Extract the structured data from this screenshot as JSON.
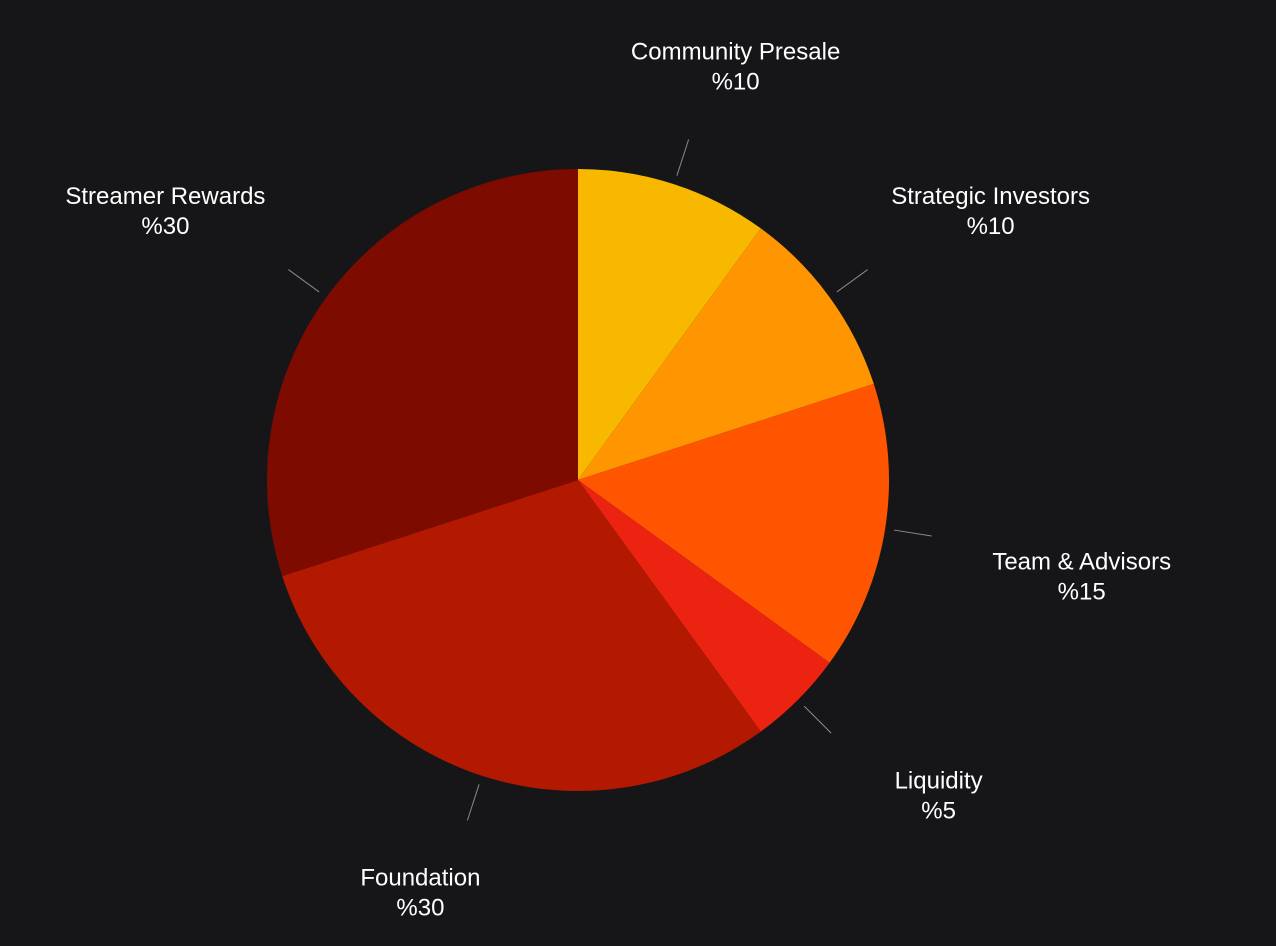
{
  "chart_data": {
    "type": "pie",
    "background": "#161618",
    "start_angle_deg": 0,
    "direction": "clockwise",
    "slices": [
      {
        "label": "Community Presale",
        "value": 10,
        "value_label": "%10",
        "color": "#F8B800"
      },
      {
        "label": "Strategic Investors",
        "value": 10,
        "value_label": "%10",
        "color": "#FF9500"
      },
      {
        "label": "Team & Advisors",
        "value": 15,
        "value_label": "%15",
        "color": "#FF5500"
      },
      {
        "label": "Liquidity",
        "value": 5,
        "value_label": "%5",
        "color": "#EB2310"
      },
      {
        "label": "Foundation",
        "value": 30,
        "value_label": "%30",
        "color": "#B31800"
      },
      {
        "label": "Streamer Rewards",
        "value": 30,
        "value_label": "%30",
        "color": "#7D0B00"
      }
    ]
  }
}
